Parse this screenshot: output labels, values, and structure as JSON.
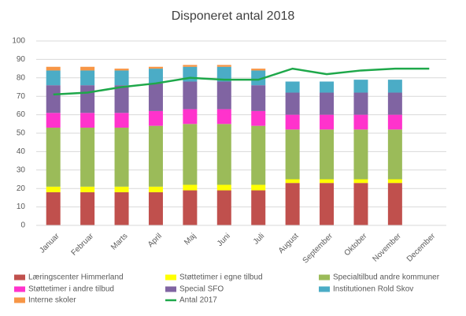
{
  "chart_data": {
    "type": "stacked-bar-line",
    "title": "Disponeret antal 2018",
    "categories": [
      "Januar",
      "Februar",
      "Marts",
      "April",
      "Maj",
      "Juni",
      "Juli",
      "August",
      "September",
      "Oktober",
      "November",
      "December"
    ],
    "ylim": [
      0,
      100
    ],
    "yticks": [
      0,
      10,
      20,
      30,
      40,
      50,
      60,
      70,
      80,
      90,
      100
    ],
    "grid": true,
    "legend": "bottom",
    "series": [
      {
        "name": "Læringscenter Himmerland",
        "color": "#c0504d",
        "type": "bar",
        "values": [
          18,
          18,
          18,
          18,
          19,
          19,
          19,
          23,
          23,
          23,
          23,
          null
        ]
      },
      {
        "name": "Støttetimer i egne tilbud",
        "color": "#ffff00",
        "type": "bar",
        "values": [
          3,
          3,
          3,
          3,
          3,
          3,
          3,
          2,
          2,
          2,
          2,
          null
        ]
      },
      {
        "name": "Specialtilbud andre kommuner",
        "color": "#9bbb59",
        "type": "bar",
        "values": [
          32,
          32,
          32,
          33,
          33,
          33,
          32,
          27,
          27,
          27,
          27,
          null
        ]
      },
      {
        "name": "Støttetimer i andre tilbud",
        "color": "#ff33cc",
        "type": "bar",
        "values": [
          8,
          8,
          8,
          8,
          8,
          8,
          8,
          8,
          8,
          8,
          8,
          null
        ]
      },
      {
        "name": "Special SFO",
        "color": "#8064a2",
        "type": "bar",
        "values": [
          15,
          15,
          15,
          15,
          15,
          15,
          14,
          12,
          12,
          12,
          12,
          null
        ]
      },
      {
        "name": "Institutionen Rold Skov",
        "color": "#4bacc6",
        "type": "bar",
        "values": [
          8,
          8,
          8,
          8,
          8,
          8,
          8,
          6,
          6,
          7,
          7,
          null
        ]
      },
      {
        "name": "Interne skoler",
        "color": "#f79646",
        "type": "bar",
        "values": [
          2,
          2,
          1,
          1,
          1,
          1,
          1,
          null,
          null,
          null,
          null,
          null
        ]
      },
      {
        "name": "Antal 2017",
        "color": "#1ea84a",
        "type": "line",
        "values": [
          71,
          72,
          75,
          77,
          80,
          79,
          79,
          85,
          82,
          84,
          85,
          85
        ]
      }
    ]
  }
}
